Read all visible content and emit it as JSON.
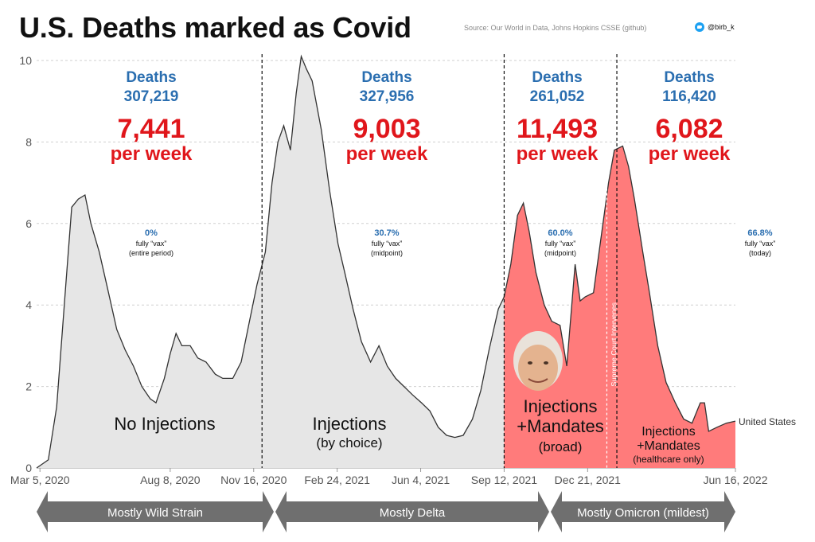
{
  "title": "U.S. Deaths marked as Covid",
  "source": "Source: Our World in Data, Johns Hopkins CSSE (github)",
  "handle": "@birb_k",
  "icons": {
    "twitter": "twitter-bird-icon",
    "portrait": "person-portrait-icon"
  },
  "colors": {
    "pre": "#e6e6e6",
    "mandate": "#ff7b7b",
    "stat_blue": "#2a6eb0",
    "stat_red": "#e0161b",
    "arrow": "#6f6f6f"
  },
  "chart_data": {
    "type": "area",
    "ylim": [
      0,
      10
    ],
    "yticks": [
      "0",
      "2",
      "4",
      "6",
      "8",
      "10"
    ],
    "xtick_labels": [
      "Mar 5, 2020",
      "Aug 8, 2020",
      "Nov 16, 2020",
      "Feb 24, 2021",
      "Jun 4, 2021",
      "Sep 12, 2021",
      "Dec 21, 2021",
      "Jun 16, 2022"
    ],
    "series_label": "United States",
    "series": [
      {
        "x": "2020-03-01",
        "y": 0.0
      },
      {
        "x": "2020-03-15",
        "y": 0.2
      },
      {
        "x": "2020-03-25",
        "y": 1.5
      },
      {
        "x": "2020-04-05",
        "y": 4.5
      },
      {
        "x": "2020-04-12",
        "y": 6.4
      },
      {
        "x": "2020-04-20",
        "y": 6.6
      },
      {
        "x": "2020-04-28",
        "y": 6.7
      },
      {
        "x": "2020-05-05",
        "y": 6.0
      },
      {
        "x": "2020-05-15",
        "y": 5.3
      },
      {
        "x": "2020-05-25",
        "y": 4.4
      },
      {
        "x": "2020-06-05",
        "y": 3.4
      },
      {
        "x": "2020-06-15",
        "y": 2.9
      },
      {
        "x": "2020-06-25",
        "y": 2.5
      },
      {
        "x": "2020-07-05",
        "y": 2.0
      },
      {
        "x": "2020-07-15",
        "y": 1.7
      },
      {
        "x": "2020-07-22",
        "y": 1.6
      },
      {
        "x": "2020-08-01",
        "y": 2.2
      },
      {
        "x": "2020-08-08",
        "y": 2.8
      },
      {
        "x": "2020-08-15",
        "y": 3.3
      },
      {
        "x": "2020-08-22",
        "y": 3.0
      },
      {
        "x": "2020-09-01",
        "y": 3.0
      },
      {
        "x": "2020-09-10",
        "y": 2.7
      },
      {
        "x": "2020-09-20",
        "y": 2.6
      },
      {
        "x": "2020-10-01",
        "y": 2.3
      },
      {
        "x": "2020-10-10",
        "y": 2.2
      },
      {
        "x": "2020-10-22",
        "y": 2.2
      },
      {
        "x": "2020-11-01",
        "y": 2.6
      },
      {
        "x": "2020-11-10",
        "y": 3.5
      },
      {
        "x": "2020-11-20",
        "y": 4.5
      },
      {
        "x": "2020-11-30",
        "y": 5.3
      },
      {
        "x": "2020-12-08",
        "y": 7.0
      },
      {
        "x": "2020-12-15",
        "y": 8.0
      },
      {
        "x": "2020-12-22",
        "y": 8.4
      },
      {
        "x": "2020-12-30",
        "y": 7.8
      },
      {
        "x": "2021-01-06",
        "y": 9.2
      },
      {
        "x": "2021-01-12",
        "y": 10.1
      },
      {
        "x": "2021-01-18",
        "y": 9.8
      },
      {
        "x": "2021-01-25",
        "y": 9.5
      },
      {
        "x": "2021-02-05",
        "y": 8.3
      },
      {
        "x": "2021-02-15",
        "y": 6.8
      },
      {
        "x": "2021-02-25",
        "y": 5.5
      },
      {
        "x": "2021-03-05",
        "y": 4.8
      },
      {
        "x": "2021-03-15",
        "y": 3.9
      },
      {
        "x": "2021-03-25",
        "y": 3.1
      },
      {
        "x": "2021-04-05",
        "y": 2.6
      },
      {
        "x": "2021-04-15",
        "y": 3.0
      },
      {
        "x": "2021-04-25",
        "y": 2.5
      },
      {
        "x": "2021-05-05",
        "y": 2.2
      },
      {
        "x": "2021-05-15",
        "y": 2.0
      },
      {
        "x": "2021-05-25",
        "y": 1.8
      },
      {
        "x": "2021-06-05",
        "y": 1.6
      },
      {
        "x": "2021-06-15",
        "y": 1.4
      },
      {
        "x": "2021-06-25",
        "y": 1.0
      },
      {
        "x": "2021-07-05",
        "y": 0.8
      },
      {
        "x": "2021-07-15",
        "y": 0.75
      },
      {
        "x": "2021-07-25",
        "y": 0.8
      },
      {
        "x": "2021-08-05",
        "y": 1.2
      },
      {
        "x": "2021-08-15",
        "y": 1.9
      },
      {
        "x": "2021-08-25",
        "y": 2.9
      },
      {
        "x": "2021-09-05",
        "y": 3.9
      },
      {
        "x": "2021-09-12",
        "y": 4.2
      },
      {
        "x": "2021-09-20",
        "y": 5.0
      },
      {
        "x": "2021-09-28",
        "y": 6.2
      },
      {
        "x": "2021-10-05",
        "y": 6.5
      },
      {
        "x": "2021-10-12",
        "y": 5.8
      },
      {
        "x": "2021-10-20",
        "y": 4.8
      },
      {
        "x": "2021-10-30",
        "y": 4.0
      },
      {
        "x": "2021-11-08",
        "y": 3.6
      },
      {
        "x": "2021-11-18",
        "y": 3.5
      },
      {
        "x": "2021-11-26",
        "y": 2.5
      },
      {
        "x": "2021-12-02",
        "y": 4.0
      },
      {
        "x": "2021-12-06",
        "y": 5.0
      },
      {
        "x": "2021-12-12",
        "y": 4.1
      },
      {
        "x": "2021-12-18",
        "y": 4.2
      },
      {
        "x": "2021-12-28",
        "y": 4.3
      },
      {
        "x": "2022-01-05",
        "y": 5.5
      },
      {
        "x": "2022-01-15",
        "y": 7.0
      },
      {
        "x": "2022-01-22",
        "y": 7.8
      },
      {
        "x": "2022-02-01",
        "y": 7.9
      },
      {
        "x": "2022-02-08",
        "y": 7.4
      },
      {
        "x": "2022-02-15",
        "y": 6.6
      },
      {
        "x": "2022-02-25",
        "y": 5.3
      },
      {
        "x": "2022-03-05",
        "y": 4.3
      },
      {
        "x": "2022-03-15",
        "y": 3.0
      },
      {
        "x": "2022-03-25",
        "y": 2.1
      },
      {
        "x": "2022-04-05",
        "y": 1.6
      },
      {
        "x": "2022-04-15",
        "y": 1.2
      },
      {
        "x": "2022-04-25",
        "y": 1.1
      },
      {
        "x": "2022-05-05",
        "y": 1.6
      },
      {
        "x": "2022-05-10",
        "y": 1.6
      },
      {
        "x": "2022-05-15",
        "y": 0.9
      },
      {
        "x": "2022-05-25",
        "y": 1.0
      },
      {
        "x": "2022-06-05",
        "y": 1.1
      },
      {
        "x": "2022-06-16",
        "y": 1.15
      }
    ],
    "dividers": [
      "2020-11-26",
      "2021-09-12",
      "2022-01-25"
    ],
    "shaded_from": "2021-09-12",
    "court_marker": "2022-01-13",
    "court_label": "Supreme Court Intervenes",
    "periods": [
      {
        "deaths_label": "Deaths",
        "deaths": "307,219",
        "weekly": "7,441",
        "weekly_label": "per week",
        "vax_pct": "0%",
        "vax_label": "fully “vax”",
        "vax_note": "(entire period)"
      },
      {
        "deaths_label": "Deaths",
        "deaths": "327,956",
        "weekly": "9,003",
        "weekly_label": "per week",
        "vax_pct": "30.7%",
        "vax_label": "fully “vax”",
        "vax_note": "(midpoint)"
      },
      {
        "deaths_label": "Deaths",
        "deaths": "261,052",
        "weekly": "11,493",
        "weekly_label": "per week",
        "vax_pct": "60.0%",
        "vax_label": "fully “vax”",
        "vax_note": "(midpoint)"
      },
      {
        "deaths_label": "Deaths",
        "deaths": "116,420",
        "weekly": "6,082",
        "weekly_label": "per week",
        "vax_pct": "66.8%",
        "vax_label": "fully “vax”",
        "vax_note": "(today)"
      }
    ],
    "period_labels": [
      {
        "line1": "No Injections"
      },
      {
        "line1": "Injections",
        "line2": "(by choice)"
      },
      {
        "line1": "Injections",
        "line2": "+Mandates",
        "line3": "(broad)"
      },
      {
        "line1": "Injections",
        "line2": "+Mandates",
        "line3": "(healthcare only)"
      }
    ],
    "strains": [
      "Mostly Wild Strain",
      "Mostly Delta",
      "Mostly Omicron (mildest)"
    ]
  }
}
